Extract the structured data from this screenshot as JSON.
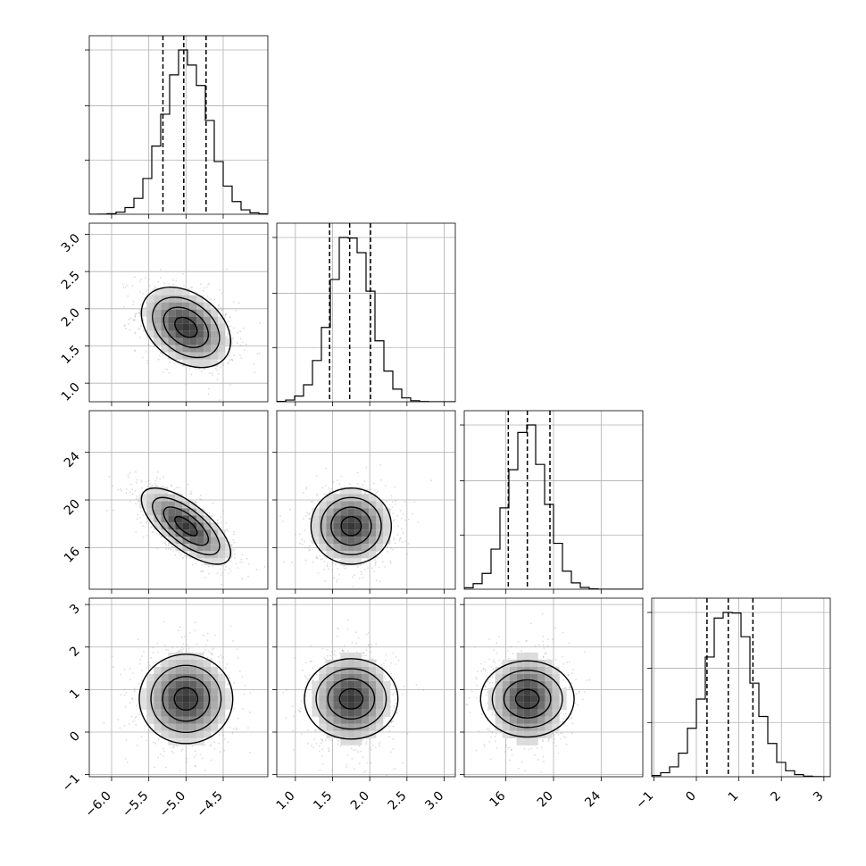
{
  "chart_data": {
    "type": "corner",
    "grid": true,
    "parameters": [
      {
        "range": [
          -6.3,
          -3.9
        ],
        "ticks": [
          "−6.0",
          "−5.5",
          "−5.0",
          "−4.5"
        ],
        "tick_values": [
          -6.0,
          -5.5,
          -5.0,
          -4.5
        ],
        "mean": -5.0,
        "sigma": 0.3,
        "quantiles": [
          -5.31,
          -5.03,
          -4.73
        ]
      },
      {
        "range": [
          0.75,
          3.15
        ],
        "ticks": [
          "1.0",
          "1.5",
          "2.0",
          "2.5",
          "3.0"
        ],
        "tick_values": [
          1.0,
          1.5,
          2.0,
          2.5,
          3.0
        ],
        "mean": 1.75,
        "sigma": 0.27,
        "quantiles": [
          1.46,
          1.73,
          2.01
        ]
      },
      {
        "range": [
          12.5,
          27.5
        ],
        "ticks": [
          "16",
          "20",
          "24"
        ],
        "tick_values": [
          16,
          20,
          24
        ],
        "mean": 17.8,
        "sigma": 1.6,
        "quantiles": [
          16.2,
          17.8,
          19.7
        ]
      },
      {
        "range": [
          -1.05,
          3.15
        ],
        "ticks": [
          "−1",
          "0",
          "1",
          "2",
          "3"
        ],
        "tick_values": [
          -1,
          0,
          1,
          2,
          3
        ],
        "mean": 0.78,
        "sigma": 0.55,
        "quantiles": [
          0.25,
          0.75,
          1.33
        ]
      }
    ],
    "correlations": [
      [
        0,
        1,
        -0.35
      ],
      [
        0,
        2,
        -0.7
      ],
      [
        0,
        3,
        0.0
      ],
      [
        1,
        2,
        0.0
      ],
      [
        1,
        3,
        0.0
      ],
      [
        2,
        3,
        0.0
      ]
    ],
    "histogram_bins": 20,
    "contour_levels": [
      0.5,
      1.0,
      1.5,
      2.0
    ],
    "colors": {
      "line": "#000000",
      "grid": "#b0b0b0",
      "points": "#9a9a9a"
    }
  }
}
